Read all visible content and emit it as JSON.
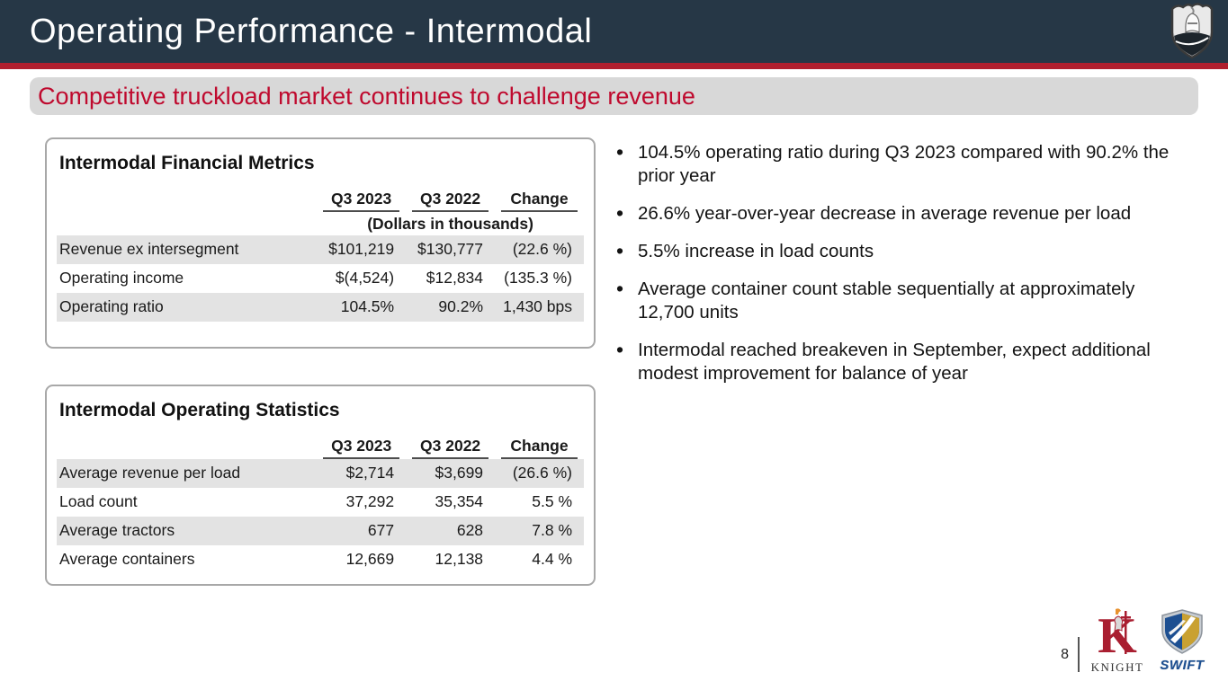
{
  "header": {
    "title": "Operating Performance - Intermodal",
    "logo": "knight-shield-icon"
  },
  "banner": {
    "text": "Competitive truckload market continues to challenge revenue"
  },
  "tables": [
    {
      "title": "Intermodal Financial Metrics",
      "columns": [
        "Q3 2023",
        "Q3 2022",
        "Change"
      ],
      "note": "(Dollars in thousands)",
      "rows": [
        {
          "label": "Revenue ex intersegment",
          "values": [
            "$101,219",
            "$130,777",
            "(22.6 %)"
          ],
          "striped": true
        },
        {
          "label": "Operating income",
          "values": [
            "$(4,524)",
            "$12,834",
            "(135.3 %)"
          ],
          "striped": false
        },
        {
          "label": "Operating ratio",
          "values": [
            "104.5%",
            "90.2%",
            "1,430 bps"
          ],
          "striped": true
        }
      ]
    },
    {
      "title": "Intermodal Operating Statistics",
      "columns": [
        "Q3 2023",
        "Q3 2022",
        "Change"
      ],
      "note": "",
      "rows": [
        {
          "label": "Average revenue per load",
          "values": [
            "$2,714",
            "$3,699",
            "(26.6 %)"
          ],
          "striped": true
        },
        {
          "label": "Load count",
          "values": [
            "37,292",
            "35,354",
            "5.5 %"
          ],
          "striped": false
        },
        {
          "label": "Average tractors",
          "values": [
            "677",
            "628",
            "7.8 %"
          ],
          "striped": true
        },
        {
          "label": "Average containers",
          "values": [
            "12,669",
            "12,138",
            "4.4 %"
          ],
          "striped": false
        }
      ]
    }
  ],
  "bullets": [
    "104.5% operating ratio during Q3 2023 compared with 90.2% the prior year",
    "26.6% year-over-year decrease in average revenue per load",
    "5.5% increase in load counts",
    "Average container count stable sequentially at approximately 12,700 units",
    "Intermodal reached breakeven in September, expect additional modest improvement for balance of year"
  ],
  "footer": {
    "page_number": "8",
    "knight_label": "KNIGHT",
    "swift_label": "SWIFT"
  },
  "colors": {
    "header_bg": "#263746",
    "accent_red": "#b01f2e",
    "banner_bg": "#d8d8d8",
    "banner_text": "#bf0a2e",
    "row_stripe": "#e3e3e3",
    "knight_red": "#a91e30",
    "swift_blue": "#1d4f91",
    "swift_gold": "#c9a132"
  }
}
